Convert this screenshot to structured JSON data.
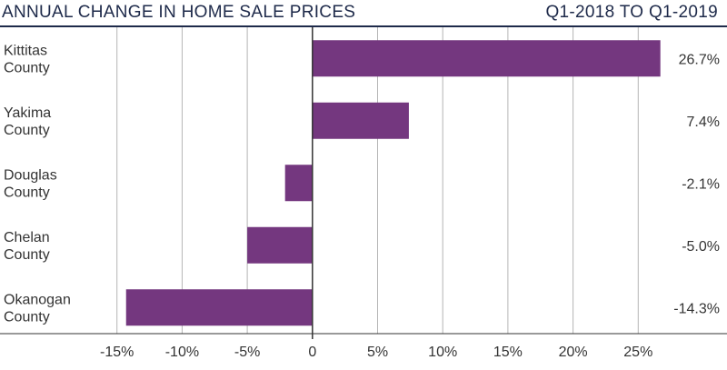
{
  "header": {
    "title": "ANNUAL CHANGE IN HOME SALE PRICES",
    "period": "Q1-2018 TO Q1-2019"
  },
  "colors": {
    "bar": "#74377f",
    "header_text": "#1e2a4a",
    "grid": "#b5b5b5",
    "axis": "#333333",
    "text": "#333333"
  },
  "chart_data": {
    "type": "bar",
    "orientation": "horizontal",
    "title": "ANNUAL CHANGE IN HOME SALE PRICES",
    "subtitle": "Q1-2018 TO Q1-2019",
    "categories": [
      [
        "Kittitas",
        "County"
      ],
      [
        "Yakima",
        "County"
      ],
      [
        "Douglas",
        "County"
      ],
      [
        "Chelan",
        "County"
      ],
      [
        "Okanogan",
        "County"
      ]
    ],
    "values": [
      26.7,
      7.4,
      -2.1,
      -5.0,
      -14.3
    ],
    "value_labels": [
      "26.7%",
      "7.4%",
      "-2.1%",
      "-5.0%",
      "-14.3%"
    ],
    "xlim": [
      -20,
      30
    ],
    "xticks": [
      -15,
      -10,
      -5,
      0,
      5,
      10,
      15,
      20,
      25
    ],
    "xtick_labels": [
      "-15%",
      "-10%",
      "-5%",
      "0",
      "5%",
      "10%",
      "15%",
      "20%",
      "25%"
    ],
    "grid": true,
    "legend": "none"
  }
}
